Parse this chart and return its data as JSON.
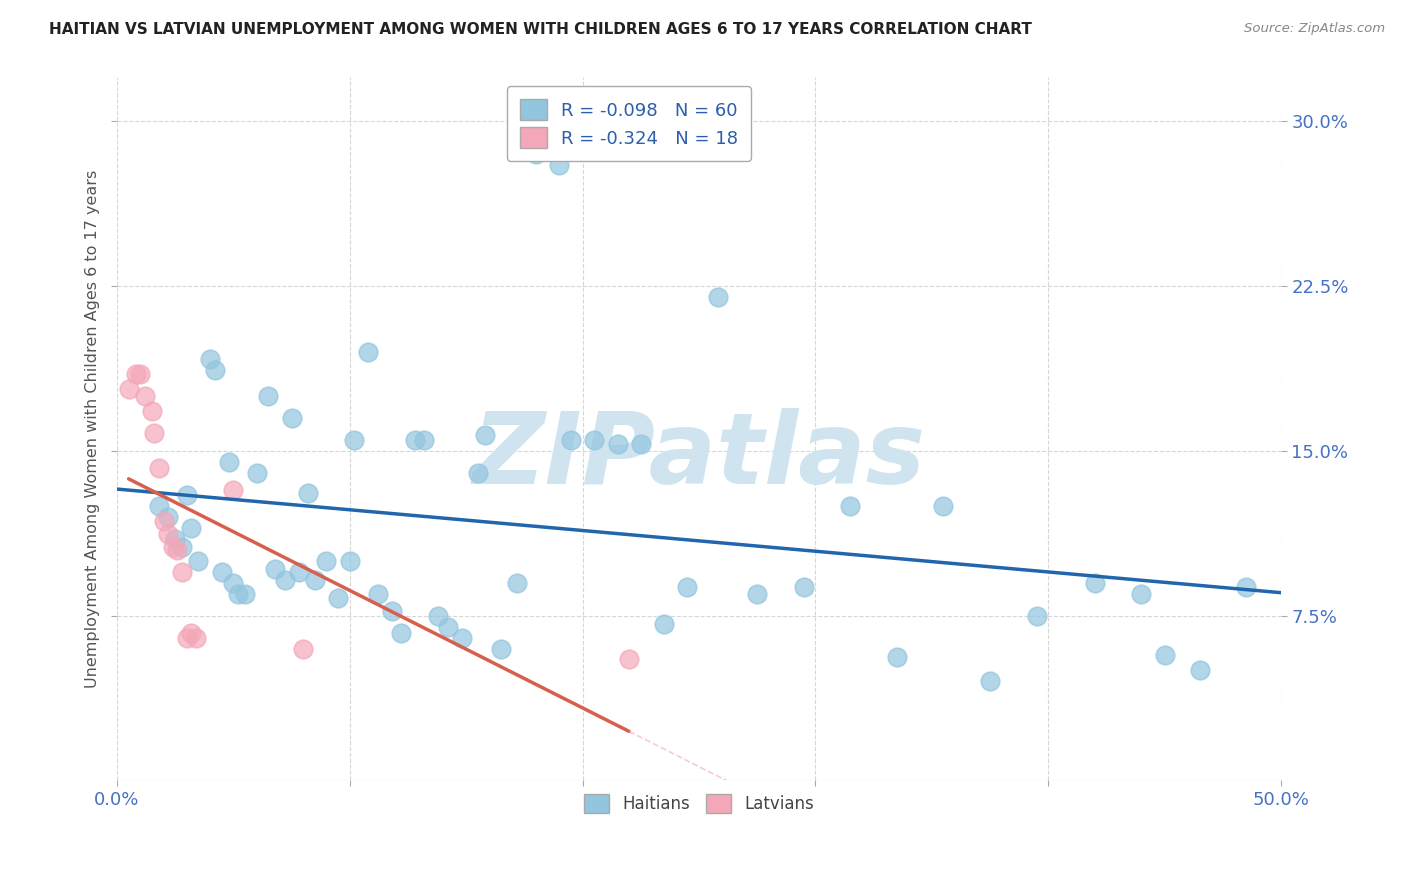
{
  "title": "HAITIAN VS LATVIAN UNEMPLOYMENT AMONG WOMEN WITH CHILDREN AGES 6 TO 17 YEARS CORRELATION CHART",
  "source": "Source: ZipAtlas.com",
  "ylabel": "Unemployment Among Women with Children Ages 6 to 17 years",
  "xlim": [
    0.0,
    0.5
  ],
  "ylim": [
    0.0,
    0.32
  ],
  "xtick_positions": [
    0.0,
    0.1,
    0.2,
    0.3,
    0.4,
    0.5
  ],
  "xticklabels": [
    "0.0%",
    "",
    "",
    "",
    "",
    "50.0%"
  ],
  "ytick_positions": [
    0.075,
    0.15,
    0.225,
    0.3
  ],
  "ytick_labels": [
    "7.5%",
    "15.0%",
    "22.5%",
    "30.0%"
  ],
  "R_haitian": -0.098,
  "N_haitian": 60,
  "R_latvian": -0.324,
  "N_latvian": 18,
  "haitian_color": "#92C5DE",
  "latvian_color": "#F4A7B9",
  "haitian_line_color": "#2166AC",
  "latvian_line_color": "#D6604D",
  "latvian_line_dashed_color": "#F4A7B9",
  "watermark": "ZIPatlas",
  "watermark_color": "#D0E4F0",
  "background_color": "#ffffff",
  "grid_color": "#cccccc",
  "haitian_x": [
    0.018,
    0.022,
    0.025,
    0.028,
    0.03,
    0.032,
    0.035,
    0.04,
    0.042,
    0.045,
    0.048,
    0.05,
    0.052,
    0.055,
    0.06,
    0.065,
    0.068,
    0.072,
    0.075,
    0.078,
    0.082,
    0.085,
    0.09,
    0.095,
    0.1,
    0.102,
    0.108,
    0.112,
    0.118,
    0.122,
    0.128,
    0.132,
    0.138,
    0.142,
    0.148,
    0.155,
    0.158,
    0.165,
    0.172,
    0.18,
    0.19,
    0.195,
    0.205,
    0.215,
    0.225,
    0.235,
    0.245,
    0.258,
    0.275,
    0.295,
    0.315,
    0.335,
    0.355,
    0.375,
    0.395,
    0.42,
    0.44,
    0.45,
    0.465,
    0.485
  ],
  "haitian_y": [
    0.125,
    0.12,
    0.11,
    0.106,
    0.13,
    0.115,
    0.1,
    0.192,
    0.187,
    0.095,
    0.145,
    0.09,
    0.085,
    0.085,
    0.14,
    0.175,
    0.096,
    0.091,
    0.165,
    0.095,
    0.131,
    0.091,
    0.1,
    0.083,
    0.1,
    0.155,
    0.195,
    0.085,
    0.077,
    0.067,
    0.155,
    0.155,
    0.075,
    0.07,
    0.065,
    0.14,
    0.157,
    0.06,
    0.09,
    0.285,
    0.28,
    0.155,
    0.155,
    0.153,
    0.153,
    0.071,
    0.088,
    0.22,
    0.085,
    0.088,
    0.125,
    0.056,
    0.125,
    0.045,
    0.075,
    0.09,
    0.085,
    0.057,
    0.05,
    0.088
  ],
  "latvian_x": [
    0.005,
    0.008,
    0.01,
    0.012,
    0.015,
    0.016,
    0.018,
    0.02,
    0.022,
    0.024,
    0.026,
    0.028,
    0.03,
    0.032,
    0.034,
    0.05,
    0.08,
    0.22
  ],
  "latvian_y": [
    0.178,
    0.185,
    0.185,
    0.175,
    0.168,
    0.158,
    0.142,
    0.118,
    0.112,
    0.106,
    0.105,
    0.095,
    0.065,
    0.067,
    0.065,
    0.132,
    0.06,
    0.055
  ]
}
